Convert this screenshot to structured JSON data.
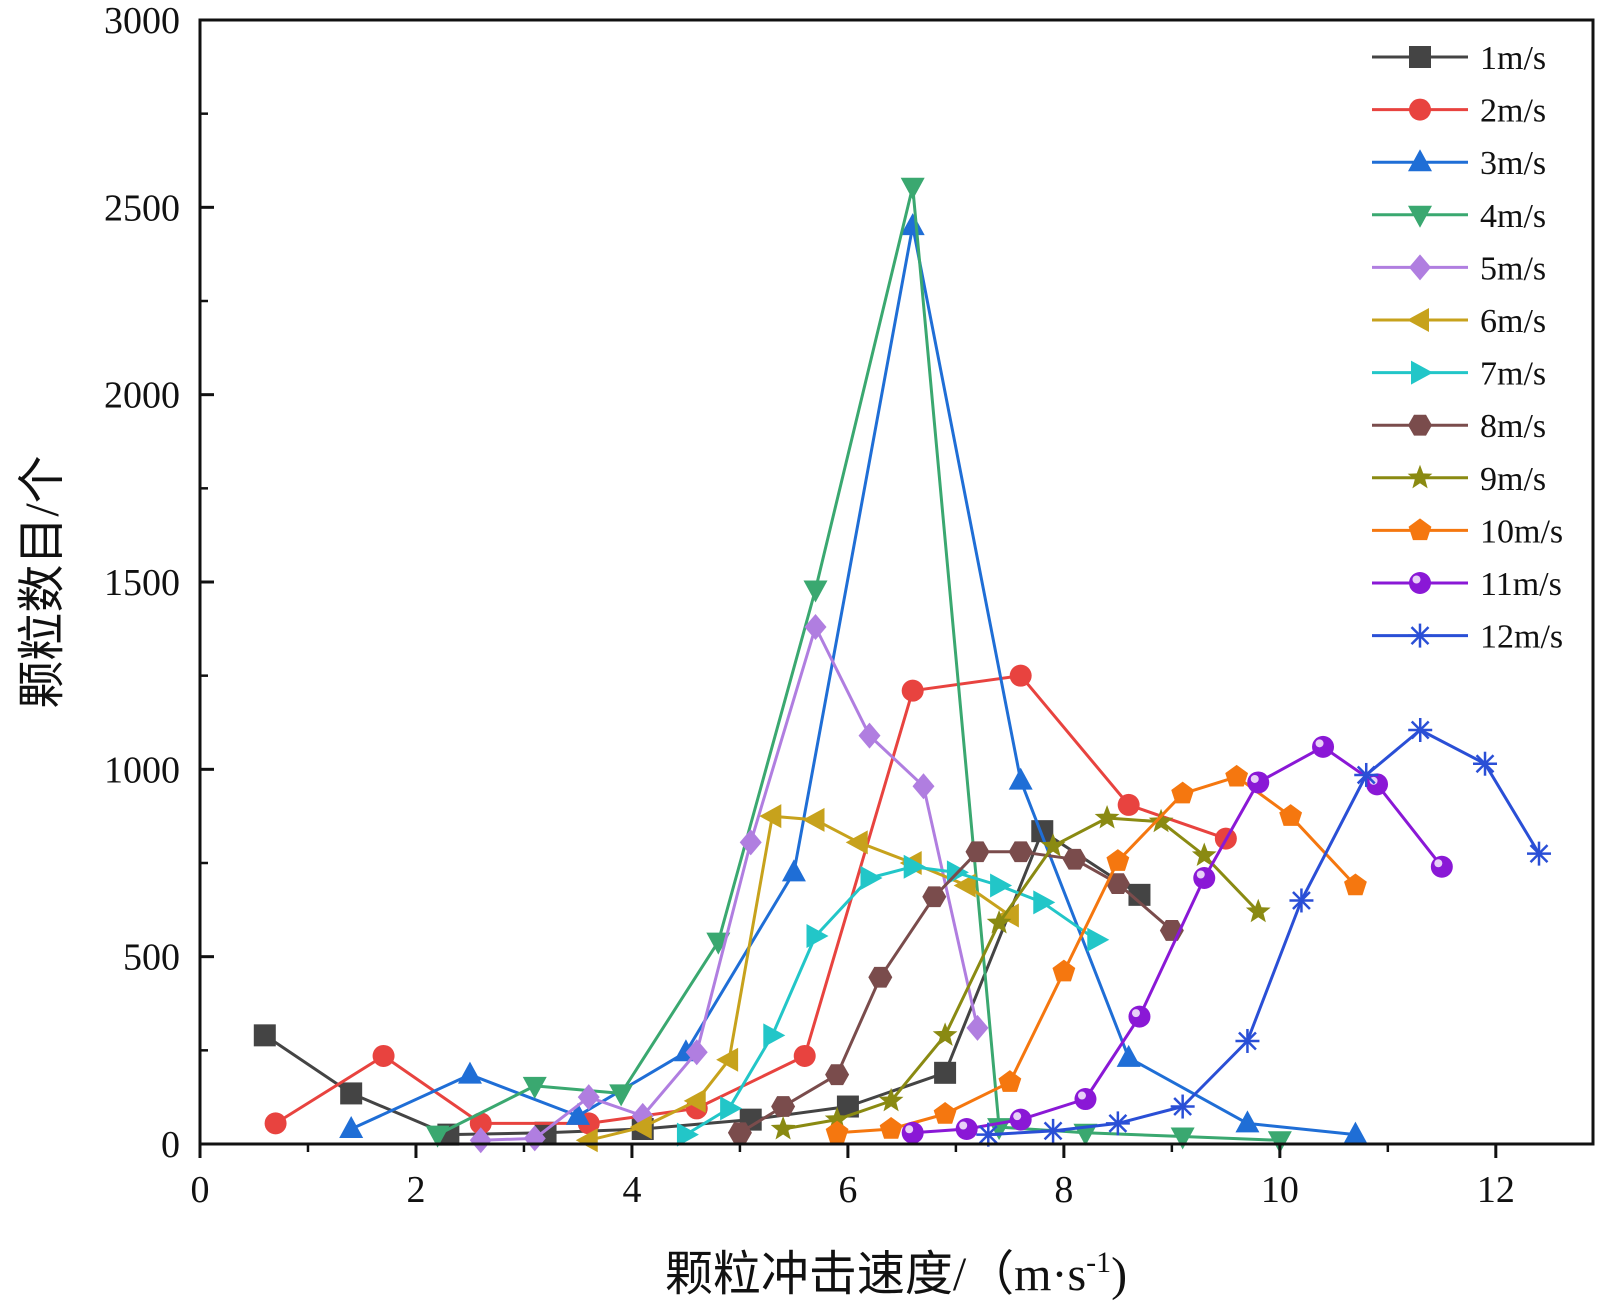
{
  "chart_data": {
    "type": "line",
    "title": "",
    "xlabel": "颗粒冲击速度/（m·s",
    "xlabel_superscript": "-1",
    "xlabel_suffix": ")",
    "ylabel": "颗粒数目/个",
    "xlim": [
      0,
      12.9
    ],
    "ylim": [
      0,
      3000
    ],
    "xticks": [
      "0",
      "2",
      "4",
      "6",
      "8",
      "10",
      "12"
    ],
    "yticks": [
      "0",
      "500",
      "1000",
      "1500",
      "2000",
      "2500",
      "3000"
    ],
    "grid": false,
    "legend_position": "top-right",
    "series": [
      {
        "name": "1m/s",
        "color": "#444444",
        "marker": "square",
        "x": [
          0.6,
          1.4,
          2.3,
          3.2,
          4.1,
          5.1,
          6.0,
          6.9,
          7.8,
          8.7
        ],
        "y": [
          290,
          135,
          25,
          30,
          40,
          65,
          100,
          190,
          835,
          665
        ]
      },
      {
        "name": "2m/s",
        "color": "#e8433f",
        "marker": "circle",
        "x": [
          0.7,
          1.7,
          2.6,
          3.6,
          4.6,
          5.6,
          6.6,
          7.6,
          8.6,
          9.5
        ],
        "y": [
          55,
          235,
          55,
          55,
          95,
          235,
          1210,
          1250,
          905,
          815
        ]
      },
      {
        "name": "3m/s",
        "color": "#1f6ed6",
        "marker": "triangle-up",
        "x": [
          1.4,
          2.5,
          3.5,
          4.5,
          5.5,
          6.6,
          7.6,
          8.6,
          9.7,
          10.7
        ],
        "y": [
          40,
          185,
          75,
          245,
          725,
          2450,
          970,
          230,
          55,
          25
        ]
      },
      {
        "name": "4m/s",
        "color": "#3aa870",
        "marker": "triangle-down",
        "x": [
          2.2,
          3.1,
          3.9,
          4.8,
          5.7,
          6.6,
          7.4,
          8.2,
          9.1,
          10.0
        ],
        "y": [
          25,
          155,
          135,
          540,
          1480,
          2555,
          45,
          30,
          20,
          10
        ]
      },
      {
        "name": "5m/s",
        "color": "#b07ee0",
        "marker": "diamond",
        "x": [
          2.6,
          3.1,
          3.6,
          4.1,
          4.6,
          5.1,
          5.7,
          6.2,
          6.7,
          7.2
        ],
        "y": [
          10,
          15,
          125,
          75,
          245,
          805,
          1380,
          1090,
          955,
          310
        ]
      },
      {
        "name": "6m/s",
        "color": "#c7a21c",
        "marker": "triangle-left",
        "x": [
          3.6,
          4.1,
          4.6,
          4.9,
          5.3,
          5.7,
          6.1,
          6.6,
          7.1,
          7.5
        ],
        "y": [
          10,
          45,
          115,
          225,
          875,
          865,
          805,
          750,
          690,
          610
        ]
      },
      {
        "name": "7m/s",
        "color": "#22c6c8",
        "marker": "triangle-right",
        "x": [
          4.5,
          4.9,
          5.3,
          5.7,
          6.2,
          6.6,
          7.0,
          7.4,
          7.8,
          8.3
        ],
        "y": [
          25,
          95,
          290,
          555,
          710,
          740,
          725,
          690,
          645,
          545
        ]
      },
      {
        "name": "8m/s",
        "color": "#7a4c4c",
        "marker": "hexagon",
        "x": [
          5.0,
          5.4,
          5.9,
          6.3,
          6.8,
          7.2,
          7.6,
          8.1,
          8.5,
          9.0
        ],
        "y": [
          30,
          100,
          185,
          445,
          660,
          780,
          780,
          760,
          695,
          570
        ]
      },
      {
        "name": "9m/s",
        "color": "#8a8a12",
        "marker": "star",
        "x": [
          5.4,
          5.9,
          6.4,
          6.9,
          7.4,
          7.9,
          8.4,
          8.9,
          9.3,
          9.8
        ],
        "y": [
          40,
          65,
          115,
          290,
          590,
          795,
          870,
          860,
          770,
          620
        ]
      },
      {
        "name": "10m/s",
        "color": "#f5770f",
        "marker": "pentagon",
        "x": [
          5.9,
          6.4,
          6.9,
          7.5,
          8.0,
          8.5,
          9.1,
          9.6,
          10.1,
          10.7
        ],
        "y": [
          30,
          40,
          80,
          165,
          460,
          755,
          935,
          980,
          875,
          690
        ]
      },
      {
        "name": "11m/s",
        "color": "#8a18d6",
        "marker": "sphere",
        "x": [
          6.6,
          7.1,
          7.6,
          8.2,
          8.7,
          9.3,
          9.8,
          10.4,
          10.9,
          11.5
        ],
        "y": [
          30,
          40,
          65,
          120,
          340,
          710,
          965,
          1060,
          960,
          740
        ]
      },
      {
        "name": "12m/s",
        "color": "#2a4fd6",
        "marker": "asterisk",
        "x": [
          7.3,
          7.9,
          8.5,
          9.1,
          9.7,
          10.2,
          10.8,
          11.3,
          11.9,
          12.4
        ],
        "y": [
          25,
          35,
          55,
          100,
          275,
          650,
          985,
          1105,
          1015,
          775
        ]
      }
    ]
  }
}
